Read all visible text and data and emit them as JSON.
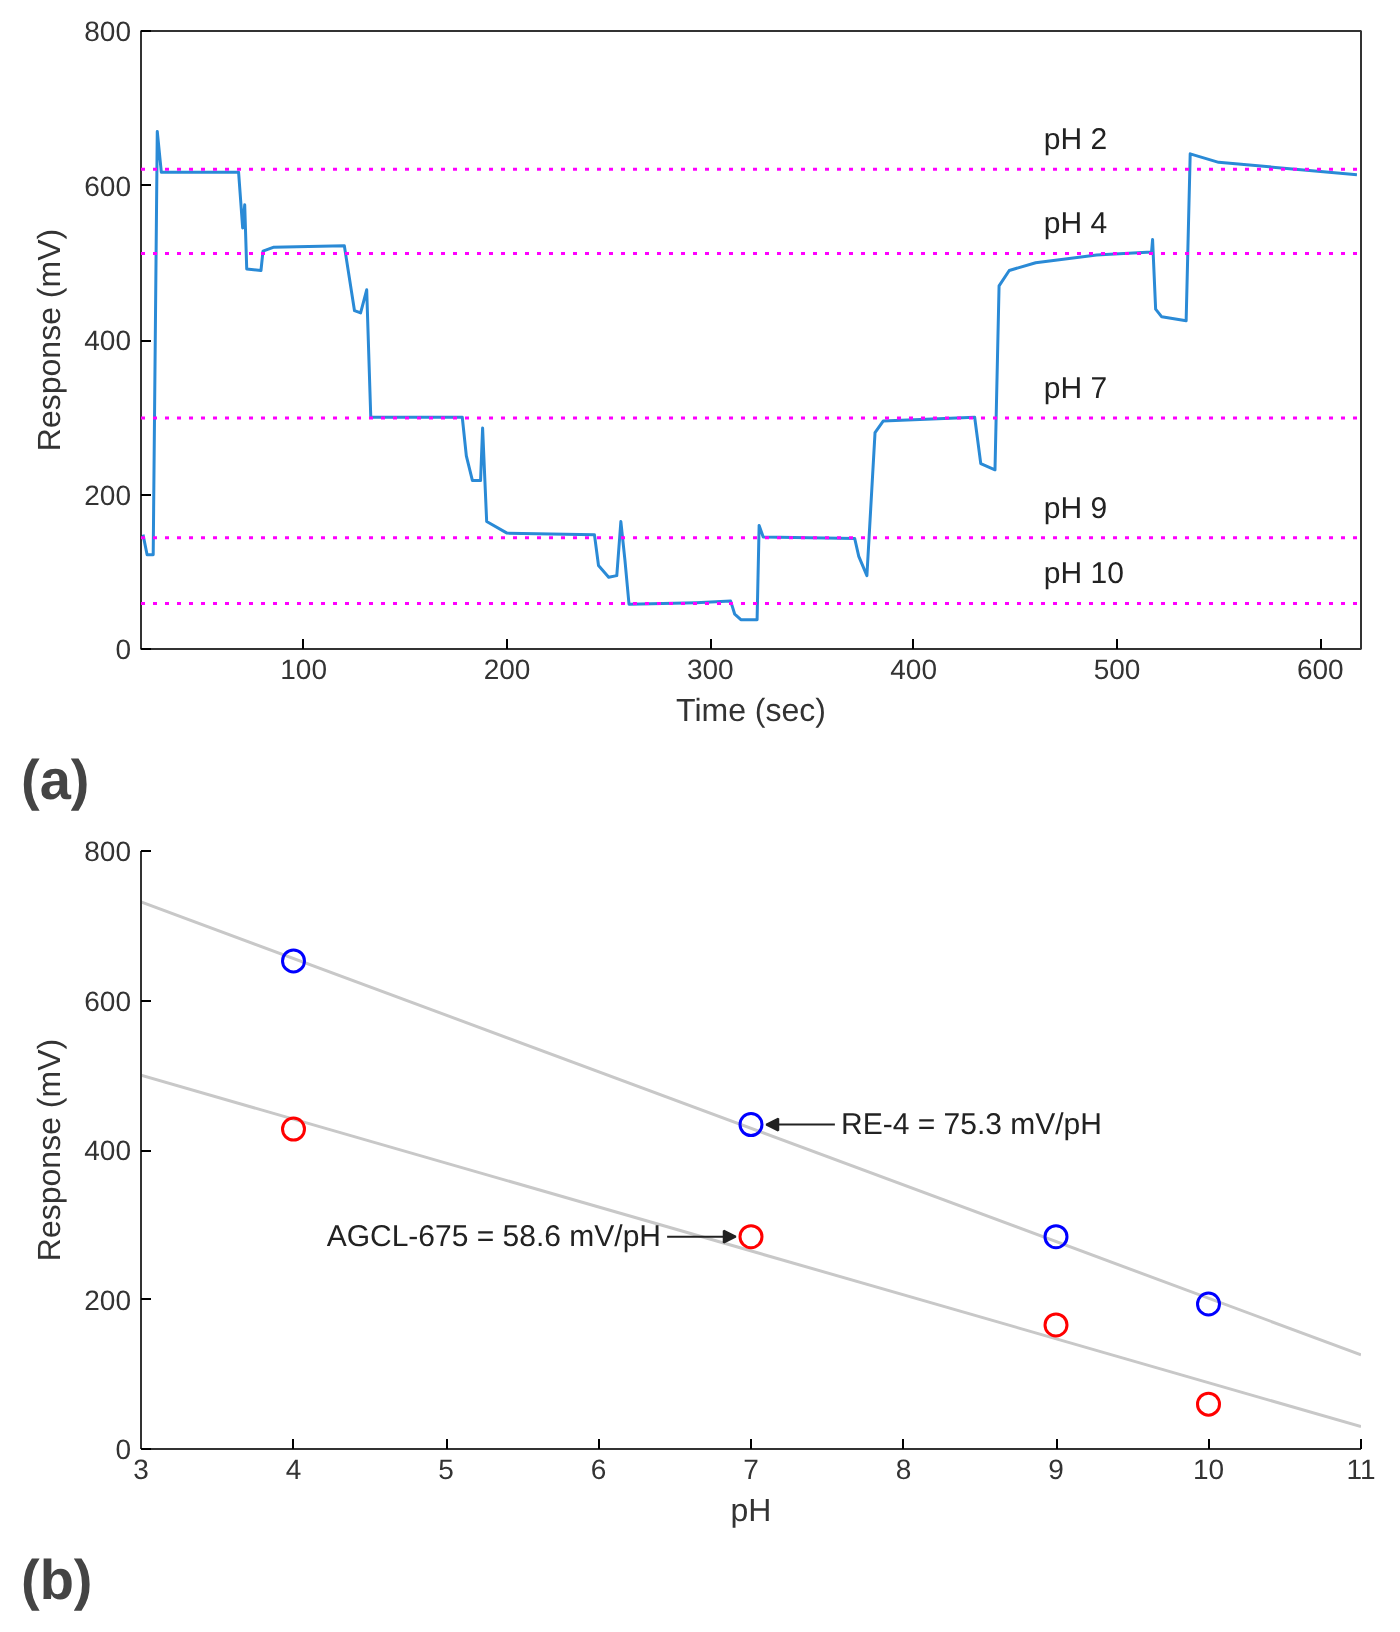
{
  "chart_data": [
    {
      "type": "line",
      "xlabel": "Time (sec)",
      "ylabel": "Response (mV)",
      "xlim": [
        20,
        620
      ],
      "xticks": [
        100,
        200,
        300,
        400,
        500,
        600
      ],
      "ylim": [
        0,
        800
      ],
      "yticks": [
        0,
        200,
        400,
        600,
        800
      ],
      "grid": false,
      "marker": "none",
      "line_style": "solid",
      "series": [
        {
          "color": "#2a8ad6",
          "x": [
            21,
            23,
            26,
            28,
            30,
            68,
            70,
            71,
            72,
            79,
            80,
            85,
            120,
            125,
            128,
            131,
            133,
            178,
            180,
            183,
            187,
            188,
            190,
            200,
            243,
            245,
            250,
            254,
            256,
            258,
            260,
            293,
            310,
            312,
            315,
            323,
            324,
            326,
            371,
            373,
            377,
            381,
            385,
            430,
            433,
            440,
            442,
            447,
            460,
            490,
            517,
            517.5,
            519,
            522,
            534,
            536,
            550,
            618
          ],
          "values": [
            148,
            122,
            122,
            670,
            617,
            617,
            545,
            575,
            492,
            490,
            515,
            520,
            522,
            438,
            435,
            465,
            300,
            300,
            250,
            218,
            218,
            286,
            165,
            150,
            148,
            108,
            93,
            95,
            165,
            115,
            58,
            60,
            62,
            45,
            38,
            38,
            160,
            145,
            143,
            120,
            95,
            280,
            295,
            300,
            240,
            232,
            470,
            490,
            500,
            510,
            514,
            530,
            440,
            430,
            425,
            641,
            630,
            614
          ]
        }
      ],
      "ref_lines": [
        {
          "axis": "y",
          "value": 621,
          "label": "pH 2",
          "color": "#ff00ff",
          "line_style": "dotted"
        },
        {
          "axis": "y",
          "value": 512,
          "label": "pH 4",
          "color": "#ff00ff",
          "line_style": "dotted"
        },
        {
          "axis": "y",
          "value": 299,
          "label": "pH 7",
          "color": "#ff00ff",
          "line_style": "dotted"
        },
        {
          "axis": "y",
          "value": 144,
          "label": "pH 9",
          "color": "#ff00ff",
          "line_style": "dotted"
        },
        {
          "axis": "y",
          "value": 59,
          "label": "pH 10",
          "color": "#ff00ff",
          "line_style": "dotted"
        }
      ],
      "annotations": [
        "(a)"
      ]
    },
    {
      "type": "scatter",
      "xlabel": "pH",
      "ylabel": "Response (mV)",
      "xlim": [
        3,
        11
      ],
      "xticks": [
        3,
        4,
        5,
        6,
        7,
        8,
        9,
        10,
        11
      ],
      "ylim": [
        0,
        800
      ],
      "yticks": [
        0,
        200,
        400,
        600,
        800
      ],
      "grid": false,
      "marker": "circle",
      "series": [
        {
          "type": "line",
          "marker": "none",
          "color": "#c8c8c8",
          "x": [
            3,
            11
          ],
          "values": [
            732,
            126
          ]
        },
        {
          "type": "line",
          "marker": "none",
          "color": "#c8c8c8",
          "x": [
            3,
            11
          ],
          "values": [
            500,
            30
          ]
        },
        {
          "color": "#0000ff",
          "x": [
            4,
            7,
            9,
            10
          ],
          "values": [
            653,
            434,
            284,
            194
          ]
        },
        {
          "color": "#ff0000",
          "x": [
            4,
            7,
            9,
            10
          ],
          "values": [
            428,
            284,
            166,
            60
          ]
        }
      ],
      "annotations": [
        {
          "text": "RE-4 = 75.3 mV/pH",
          "x": 7,
          "y": 434
        },
        {
          "text": "AGCL-675 = 58.6 mV/pH",
          "x": 7,
          "y": 284
        },
        "(b)"
      ]
    }
  ]
}
